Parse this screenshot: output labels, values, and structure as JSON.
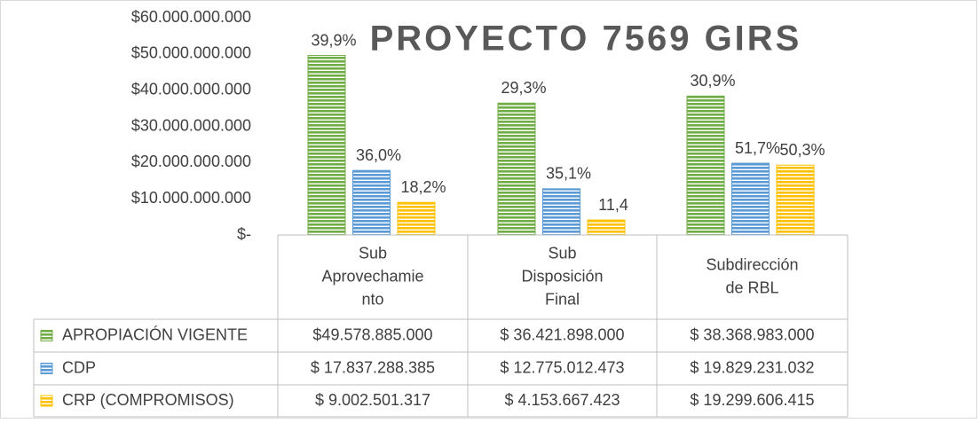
{
  "chart_data": {
    "type": "bar",
    "title": "PROYECTO 7569 GIRS",
    "categories": [
      [
        "Sub",
        "Aprovechamie",
        "nto"
      ],
      [
        "Sub",
        "Disposición",
        "Final"
      ],
      [
        "Subdirección",
        "de RBL"
      ]
    ],
    "series": [
      {
        "name": "APROPIACIÓN VIGENTE",
        "color": "#70ad47",
        "values": [
          49578885000,
          36421898000,
          38368983000
        ],
        "value_labels": [
          "$49.578.885.000",
          "$ 36.421.898.000",
          "$ 38.368.983.000"
        ],
        "bar_labels": [
          "39,9%",
          "29,3%",
          "30,9%"
        ]
      },
      {
        "name": "CDP",
        "color": "#5b9bd5",
        "values": [
          17837288385,
          12775012473,
          19829231032
        ],
        "value_labels": [
          "$ 17.837.288.385",
          "$ 12.775.012.473",
          "$ 19.829.231.032"
        ],
        "bar_labels": [
          "36,0%",
          "35,1%",
          "51,7%"
        ]
      },
      {
        "name": "CRP (COMPROMISOS)",
        "color": "#ffc000",
        "values": [
          9002501317,
          4153667423,
          19299606415
        ],
        "value_labels": [
          "$ 9.002.501.317",
          "$ 4.153.667.423",
          "$ 19.299.606.415"
        ],
        "bar_labels": [
          "18,2%",
          "11,4",
          "50,3%"
        ]
      }
    ],
    "ylim": [
      0,
      60000000000
    ],
    "yticks": [
      {
        "value": 0,
        "label": "$-"
      },
      {
        "value": 10000000000,
        "label": "$10.000.000.000"
      },
      {
        "value": 20000000000,
        "label": "$20.000.000.000"
      },
      {
        "value": 30000000000,
        "label": "$30.000.000.000"
      },
      {
        "value": 40000000000,
        "label": "$40.000.000.000"
      },
      {
        "value": 50000000000,
        "label": "$50.000.000.000"
      },
      {
        "value": 60000000000,
        "label": "$60.000.000.000"
      }
    ],
    "grid": false,
    "data_table": true
  }
}
